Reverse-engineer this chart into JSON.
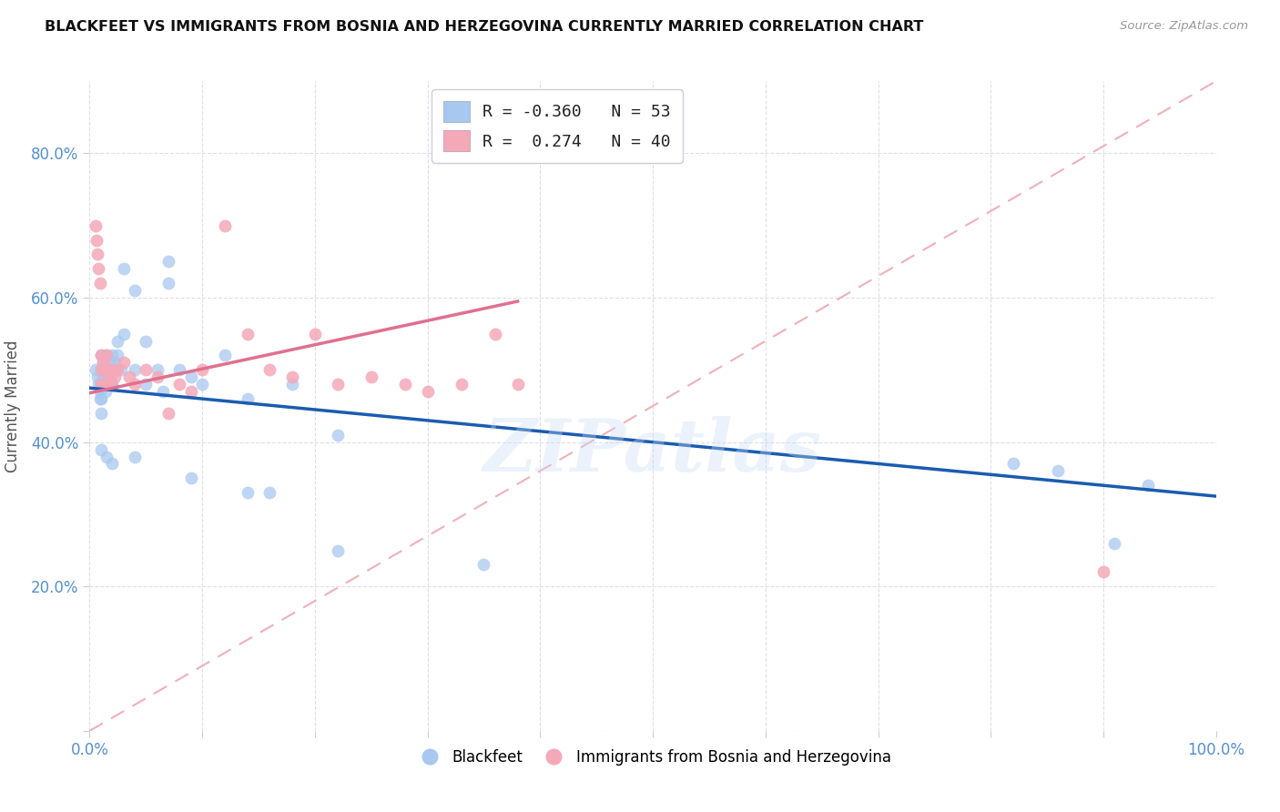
{
  "title": "BLACKFEET VS IMMIGRANTS FROM BOSNIA AND HERZEGOVINA CURRENTLY MARRIED CORRELATION CHART",
  "source": "Source: ZipAtlas.com",
  "ylabel": "Currently Married",
  "watermark": "ZIPatlas",
  "blue_scatter_color": "#A8C8F0",
  "pink_scatter_color": "#F5A8B8",
  "blue_line_color": "#1A5CB0",
  "pink_line_color": "#E07090",
  "diagonal_color": "#F0B0B8",
  "grid_color": "#DDDDEE",
  "title_color": "#111111",
  "source_color": "#999999",
  "tick_color": "#5590CC",
  "legend_r1_val": "-0.360",
  "legend_n1_val": "53",
  "legend_r2_val": "0.274",
  "legend_n2_val": "40",
  "blackfeet_x": [
    0.005,
    0.007,
    0.008,
    0.009,
    0.009,
    0.01,
    0.01,
    0.01,
    0.01,
    0.01,
    0.012,
    0.012,
    0.013,
    0.013,
    0.014,
    0.015,
    0.015,
    0.016,
    0.017,
    0.018,
    0.018,
    0.019,
    0.02,
    0.02,
    0.02,
    0.022,
    0.023,
    0.025,
    0.025,
    0.028,
    0.03,
    0.03,
    0.04,
    0.04,
    0.04,
    0.05,
    0.05,
    0.06,
    0.065,
    0.07,
    0.07,
    0.08,
    0.09,
    0.1,
    0.12,
    0.14,
    0.16,
    0.18,
    0.22,
    0.82,
    0.86,
    0.91,
    0.94
  ],
  "blackfeet_y": [
    0.5,
    0.49,
    0.48,
    0.47,
    0.46,
    0.52,
    0.5,
    0.48,
    0.46,
    0.44,
    0.51,
    0.49,
    0.5,
    0.48,
    0.47,
    0.52,
    0.5,
    0.49,
    0.48,
    0.51,
    0.49,
    0.48,
    0.52,
    0.5,
    0.48,
    0.51,
    0.5,
    0.54,
    0.52,
    0.5,
    0.55,
    0.64,
    0.61,
    0.5,
    0.38,
    0.54,
    0.48,
    0.5,
    0.47,
    0.65,
    0.62,
    0.5,
    0.49,
    0.48,
    0.52,
    0.46,
    0.33,
    0.48,
    0.41,
    0.37,
    0.36,
    0.26,
    0.34
  ],
  "blackfeet_y_low": [
    0.39,
    0.38,
    0.37,
    0.35,
    0.33,
    0.25,
    0.23
  ],
  "blackfeet_x_low": [
    0.01,
    0.015,
    0.02,
    0.09,
    0.14,
    0.22,
    0.35
  ],
  "bosnia_x": [
    0.005,
    0.006,
    0.007,
    0.008,
    0.009,
    0.01,
    0.01,
    0.01,
    0.012,
    0.013,
    0.014,
    0.015,
    0.016,
    0.018,
    0.019,
    0.02,
    0.022,
    0.025,
    0.03,
    0.035,
    0.04,
    0.05,
    0.06,
    0.07,
    0.08,
    0.09,
    0.1,
    0.12,
    0.14,
    0.16,
    0.18,
    0.2,
    0.22,
    0.25,
    0.28,
    0.3,
    0.33,
    0.36,
    0.38,
    0.9
  ],
  "bosnia_y": [
    0.7,
    0.68,
    0.66,
    0.64,
    0.62,
    0.52,
    0.5,
    0.48,
    0.51,
    0.5,
    0.48,
    0.52,
    0.5,
    0.49,
    0.48,
    0.5,
    0.49,
    0.5,
    0.51,
    0.49,
    0.48,
    0.5,
    0.49,
    0.44,
    0.48,
    0.47,
    0.5,
    0.7,
    0.55,
    0.5,
    0.49,
    0.55,
    0.48,
    0.49,
    0.48,
    0.47,
    0.48,
    0.55,
    0.48,
    0.22
  ],
  "xlim": [
    0.0,
    1.0
  ],
  "ylim": [
    0.0,
    0.9
  ],
  "blue_line_x0": 0.0,
  "blue_line_y0": 0.475,
  "blue_line_x1": 1.0,
  "blue_line_y1": 0.325,
  "pink_line_x0": 0.0,
  "pink_line_y0": 0.468,
  "pink_line_x1": 0.38,
  "pink_line_y1": 0.595
}
